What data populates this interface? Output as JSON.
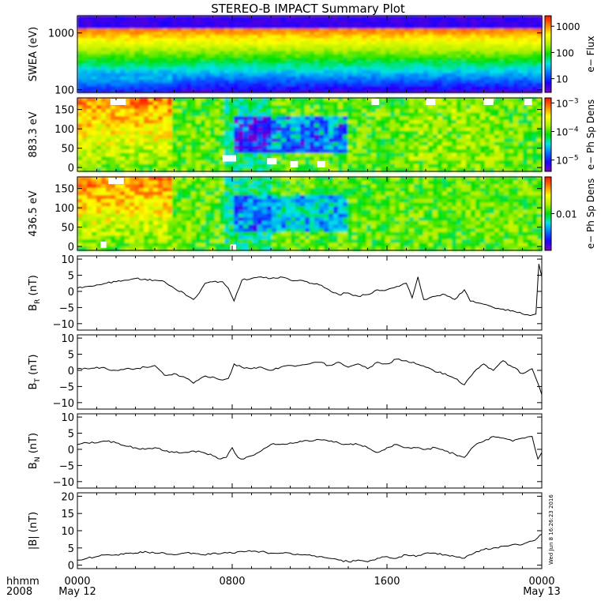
{
  "title": "STEREO-B IMPACT Summary Plot",
  "colors": {
    "spectrogram_scale": [
      "#7a00c8",
      "#1c00ff",
      "#0070ff",
      "#00e5e5",
      "#00e000",
      "#b4f000",
      "#ffff00",
      "#ff8000",
      "#ff1000"
    ],
    "line": "#000000",
    "frame": "#000000",
    "background": "#ffffff"
  },
  "time_axis": {
    "corner_label_top": "hhmm",
    "corner_label_bottom": "2008",
    "ticks": [
      {
        "t": 0,
        "label": "0000",
        "sublabel": "May 12"
      },
      {
        "t": 8,
        "label": "0800",
        "sublabel": ""
      },
      {
        "t": 16,
        "label": "1600",
        "sublabel": ""
      },
      {
        "t": 24,
        "label": "0000",
        "sublabel": "May 13"
      }
    ],
    "range_hours": [
      0,
      24
    ]
  },
  "timestamp": "Wed Jun 8 16:26:23 2016",
  "chart_data": [
    {
      "type": "heatmap",
      "ylabel": "SWEA (eV)",
      "yscale": "log",
      "ylim": [
        90,
        2000
      ],
      "yticks": [
        {
          "v": 100,
          "label": "100"
        },
        {
          "v": 1000,
          "label": "1000"
        }
      ],
      "colorbar": {
        "label": "e− Flux",
        "scale": "log",
        "range": [
          3,
          2500
        ],
        "ticks": [
          {
            "v": 10,
            "label": "10"
          },
          {
            "v": 100,
            "label": "100"
          },
          {
            "v": 1000,
            "label": "1000"
          }
        ]
      }
    },
    {
      "type": "heatmap",
      "ylabel": "883.3 eV",
      "ylim": [
        -10,
        180
      ],
      "yticks": [
        {
          "v": 0,
          "label": "0"
        },
        {
          "v": 50,
          "label": "50"
        },
        {
          "v": 100,
          "label": "100"
        },
        {
          "v": 150,
          "label": "150"
        }
      ],
      "colorbar": {
        "label": "e− Ph Sp Dens",
        "scale": "log",
        "range": [
          4e-06,
          0.0015
        ],
        "ticks": [
          {
            "v": 1e-05,
            "label": "10",
            "exp": "−5"
          },
          {
            "v": 0.0001,
            "label": "10",
            "exp": "−4"
          },
          {
            "v": 0.001,
            "label": "10",
            "exp": "−3"
          }
        ]
      }
    },
    {
      "type": "heatmap",
      "ylabel": "436.5 eV",
      "ylim": [
        -10,
        180
      ],
      "yticks": [
        {
          "v": 0,
          "label": "0"
        },
        {
          "v": 50,
          "label": "50"
        },
        {
          "v": 100,
          "label": "100"
        },
        {
          "v": 150,
          "label": "150"
        }
      ],
      "colorbar": {
        "label": "e− Ph Sp Dens",
        "scale": "log",
        "range": [
          0.001,
          0.1
        ],
        "ticks": [
          {
            "v": 0.01,
            "label": "0.01"
          }
        ]
      }
    },
    {
      "type": "line",
      "ylabel_base": "B",
      "ylabel_sub": "R",
      "ylabel_unit": " (nT)",
      "ylim": [
        -12,
        11
      ],
      "yticks": [
        {
          "v": -10,
          "label": "−10"
        },
        {
          "v": -5,
          "label": "−5"
        },
        {
          "v": 0,
          "label": "0"
        },
        {
          "v": 5,
          "label": "5"
        },
        {
          "v": 10,
          "label": "10"
        }
      ],
      "x": [
        0,
        0.5,
        1,
        1.5,
        2,
        2.5,
        3,
        3.5,
        4,
        4.5,
        5,
        5.5,
        6,
        6.3,
        6.6,
        7,
        7.5,
        7.8,
        8.1,
        8.5,
        9,
        9.5,
        10,
        10.5,
        11,
        11.5,
        12,
        12.5,
        13,
        13.5,
        14,
        14.5,
        15,
        15.5,
        16,
        16.5,
        17,
        17.3,
        17.6,
        17.9,
        18.2,
        18.5,
        19,
        19.5,
        20,
        20.3,
        20.6,
        21,
        21.5,
        22,
        22.5,
        23,
        23.4,
        23.7,
        23.85,
        24
      ],
      "y": [
        1,
        1.5,
        2,
        2.5,
        3,
        3.5,
        4,
        3.8,
        3.5,
        3,
        1,
        -0.5,
        -2.5,
        -0.5,
        2.5,
        3,
        3,
        1,
        -3,
        3.5,
        4,
        4.5,
        4,
        4.5,
        3.5,
        3.5,
        2.5,
        2,
        0.5,
        -1,
        -0.5,
        -1.5,
        -1,
        0.5,
        0.5,
        1.5,
        2.5,
        -2,
        4.5,
        -2.5,
        -2,
        -1.5,
        -1,
        -2.5,
        0.5,
        -3,
        -3.5,
        -4,
        -5,
        -5.5,
        -6,
        -7,
        -7.5,
        -7,
        8.5,
        4.5
      ]
    },
    {
      "type": "line",
      "ylabel_base": "B",
      "ylabel_sub": "T",
      "ylabel_unit": " (nT)",
      "ylim": [
        -12,
        11
      ],
      "yticks": [
        {
          "v": -10,
          "label": "−10"
        },
        {
          "v": -5,
          "label": "−5"
        },
        {
          "v": 0,
          "label": "0"
        },
        {
          "v": 5,
          "label": "5"
        },
        {
          "v": 10,
          "label": "10"
        }
      ],
      "x": [
        0,
        0.5,
        1,
        1.5,
        2,
        2.5,
        3,
        3.5,
        4,
        4.5,
        5,
        5.5,
        6,
        6.5,
        7,
        7.5,
        7.8,
        8.1,
        8.5,
        9,
        9.5,
        10,
        10.5,
        11,
        11.5,
        12,
        12.5,
        13,
        13.5,
        14,
        14.5,
        15,
        15.5,
        16,
        16.5,
        17,
        17.5,
        18,
        18.5,
        19,
        19.5,
        20,
        20.5,
        21,
        21.5,
        22,
        22.5,
        23,
        23.5,
        23.8,
        24
      ],
      "y": [
        0.5,
        0.5,
        1,
        0.5,
        0,
        0.5,
        0.5,
        1,
        1.5,
        -1.5,
        -1,
        -2,
        -4,
        -2,
        -2,
        -3,
        -2.5,
        2,
        1,
        0.5,
        1,
        0,
        1,
        1.5,
        1.5,
        2,
        2.5,
        1.5,
        2.5,
        1,
        2,
        0.5,
        2.5,
        2,
        3.5,
        3,
        2,
        1,
        -0.5,
        -1,
        -2.5,
        -4.5,
        -0.5,
        2,
        0,
        3,
        1,
        -1,
        0.5,
        -4,
        -7.5
      ]
    },
    {
      "type": "line",
      "ylabel_base": "B",
      "ylabel_sub": "N",
      "ylabel_unit": " (nT)",
      "ylim": [
        -12,
        11
      ],
      "yticks": [
        {
          "v": -10,
          "label": "−10"
        },
        {
          "v": -5,
          "label": "−5"
        },
        {
          "v": 0,
          "label": "0"
        },
        {
          "v": 5,
          "label": "5"
        },
        {
          "v": 10,
          "label": "10"
        }
      ],
      "x": [
        0,
        0.5,
        1,
        1.5,
        2,
        2.5,
        3,
        3.5,
        4,
        4.5,
        5,
        5.5,
        6,
        6.5,
        7,
        7.4,
        7.7,
        8,
        8.3,
        8.6,
        9,
        9.5,
        10,
        10.5,
        11,
        11.5,
        12,
        12.5,
        13,
        13.5,
        14,
        14.5,
        15,
        15.5,
        16,
        16.5,
        17,
        17.5,
        18,
        18.5,
        19,
        19.5,
        20,
        20.5,
        21,
        21.5,
        22,
        22.5,
        23,
        23.5,
        23.8,
        24
      ],
      "y": [
        1.5,
        2,
        2,
        2.5,
        2,
        1,
        0.5,
        0,
        0.5,
        -0.5,
        -1,
        -1,
        -0.5,
        -1,
        -2,
        -3,
        -2.5,
        0.5,
        -2.5,
        -3,
        -2,
        -0.5,
        1.5,
        1.5,
        2,
        2.5,
        2.5,
        3,
        2.5,
        2,
        1.5,
        1.5,
        0.5,
        -1,
        0.5,
        1.5,
        0.5,
        0.5,
        0,
        0.5,
        -0.5,
        -1.5,
        -2.5,
        1,
        2.5,
        4,
        3.5,
        2.5,
        3.5,
        4,
        -3,
        -1
      ]
    },
    {
      "type": "line",
      "ylabel": "|B| (nT)",
      "ylim": [
        -1,
        21
      ],
      "yticks": [
        {
          "v": 0,
          "label": "0"
        },
        {
          "v": 5,
          "label": "5"
        },
        {
          "v": 10,
          "label": "10"
        },
        {
          "v": 15,
          "label": "15"
        },
        {
          "v": 20,
          "label": "20"
        }
      ],
      "x": [
        0,
        0.5,
        1,
        1.5,
        2,
        2.5,
        3,
        3.5,
        4,
        4.5,
        5,
        5.5,
        6,
        6.5,
        7,
        7.5,
        8,
        8.5,
        9,
        9.5,
        10,
        10.5,
        11,
        11.5,
        12,
        12.5,
        13,
        13.5,
        14,
        14.5,
        15,
        15.5,
        16,
        16.5,
        17,
        17.5,
        18,
        18.5,
        19,
        19.5,
        20,
        20.5,
        21,
        21.5,
        22,
        22.5,
        23,
        23.5,
        23.8,
        24
      ],
      "y": [
        1.5,
        2,
        2.5,
        3,
        3,
        3.5,
        3.5,
        4,
        3.5,
        3.5,
        3,
        3.5,
        3.5,
        3,
        3.5,
        3.5,
        3.5,
        4,
        4,
        4,
        3.5,
        3.5,
        3.5,
        3,
        3,
        2.5,
        2,
        1.5,
        1,
        1.5,
        1,
        2,
        2.5,
        2,
        3,
        2.5,
        3.5,
        3.5,
        3,
        2.5,
        2,
        3.5,
        4.5,
        5,
        5.5,
        6,
        6,
        7,
        8,
        9
      ]
    }
  ]
}
